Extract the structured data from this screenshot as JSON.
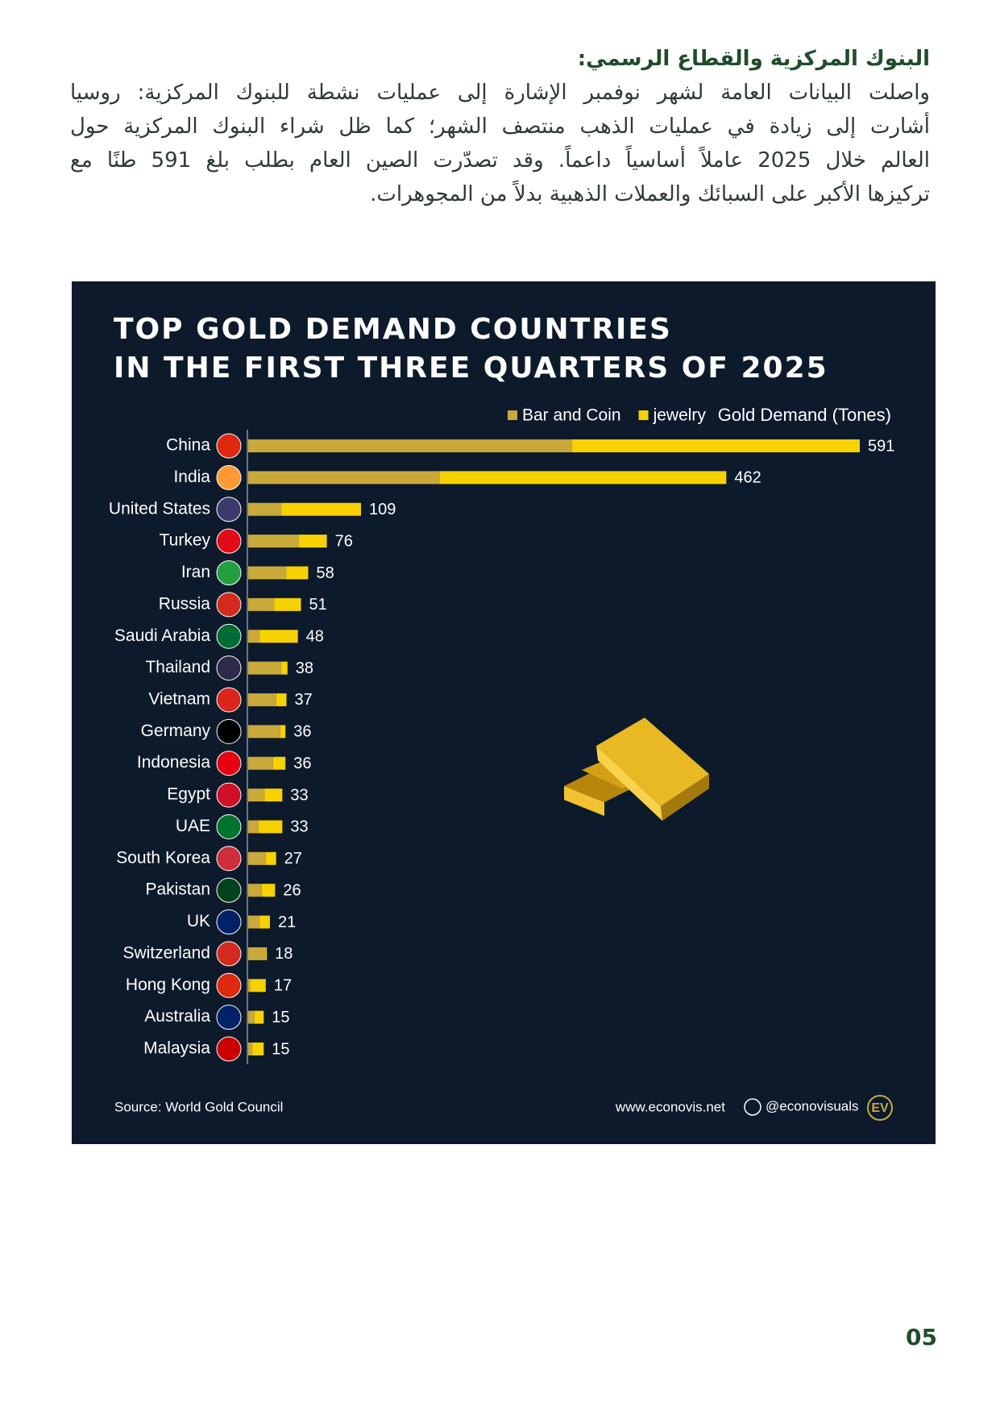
{
  "header": {
    "title": "البنوك المركزية والقطاع الرسمي:",
    "lines": [
      "واصلت البيانات العامة لشهر نوفمبر الإشارة إلى عمليات نشطة للبنوك المركزية: روسيا",
      "أشارت إلى زيادة في عمليات الذهب منتصف الشهر؛ كما ظل شراء البنوك المركزية حول",
      "العالم خلال 2025 عاملاً أساسياً داعماً. وقد تصدّرت الصين العام بطلب بلغ 591 طنًا مع",
      "تركيزها الأكبر على السبائك والعملات الذهبية بدلاً من المجوهرات."
    ]
  },
  "chart_data": {
    "type": "stacked-bar-horizontal",
    "title": [
      "TOP GOLD DEMAND COUNTRIES",
      "IN THE FIRST THREE QUARTERS OF 2025"
    ],
    "value_label": "Gold Demand (Tones)",
    "categories": [
      "China",
      "India",
      "United States",
      "Turkey",
      "Iran",
      "Russia",
      "Saudi Arabia",
      "Thailand",
      "Vietnam",
      "Germany",
      "Indonesia",
      "Egypt",
      "UAE",
      "South Korea",
      "Pakistan",
      "UK",
      "Switzerland",
      "Hong Kong",
      "Australia",
      "Malaysia"
    ],
    "series": [
      {
        "name": "Bar and Coin",
        "color": "#c9a93a",
        "values": [
          313,
          185,
          32,
          49,
          37,
          25,
          11,
          32,
          27,
          31,
          24,
          16,
          10,
          17,
          13,
          11,
          17,
          2,
          6,
          4
        ]
      },
      {
        "name": "jewelry",
        "color": "#f7d100",
        "values": [
          278,
          277,
          77,
          27,
          21,
          26,
          37,
          6,
          10,
          5,
          12,
          17,
          23,
          10,
          13,
          10,
          1,
          15,
          9,
          11
        ]
      }
    ],
    "totals": [
      591,
      462,
      109,
      76,
      58,
      51,
      48,
      38,
      37,
      36,
      36,
      33,
      33,
      27,
      26,
      21,
      18,
      17,
      15,
      15
    ],
    "source": "Source: World Gold Council",
    "website": "www.econovis.net",
    "handle": "@econovisuals",
    "logo": "EV"
  },
  "footer": {
    "page_number": "05"
  }
}
